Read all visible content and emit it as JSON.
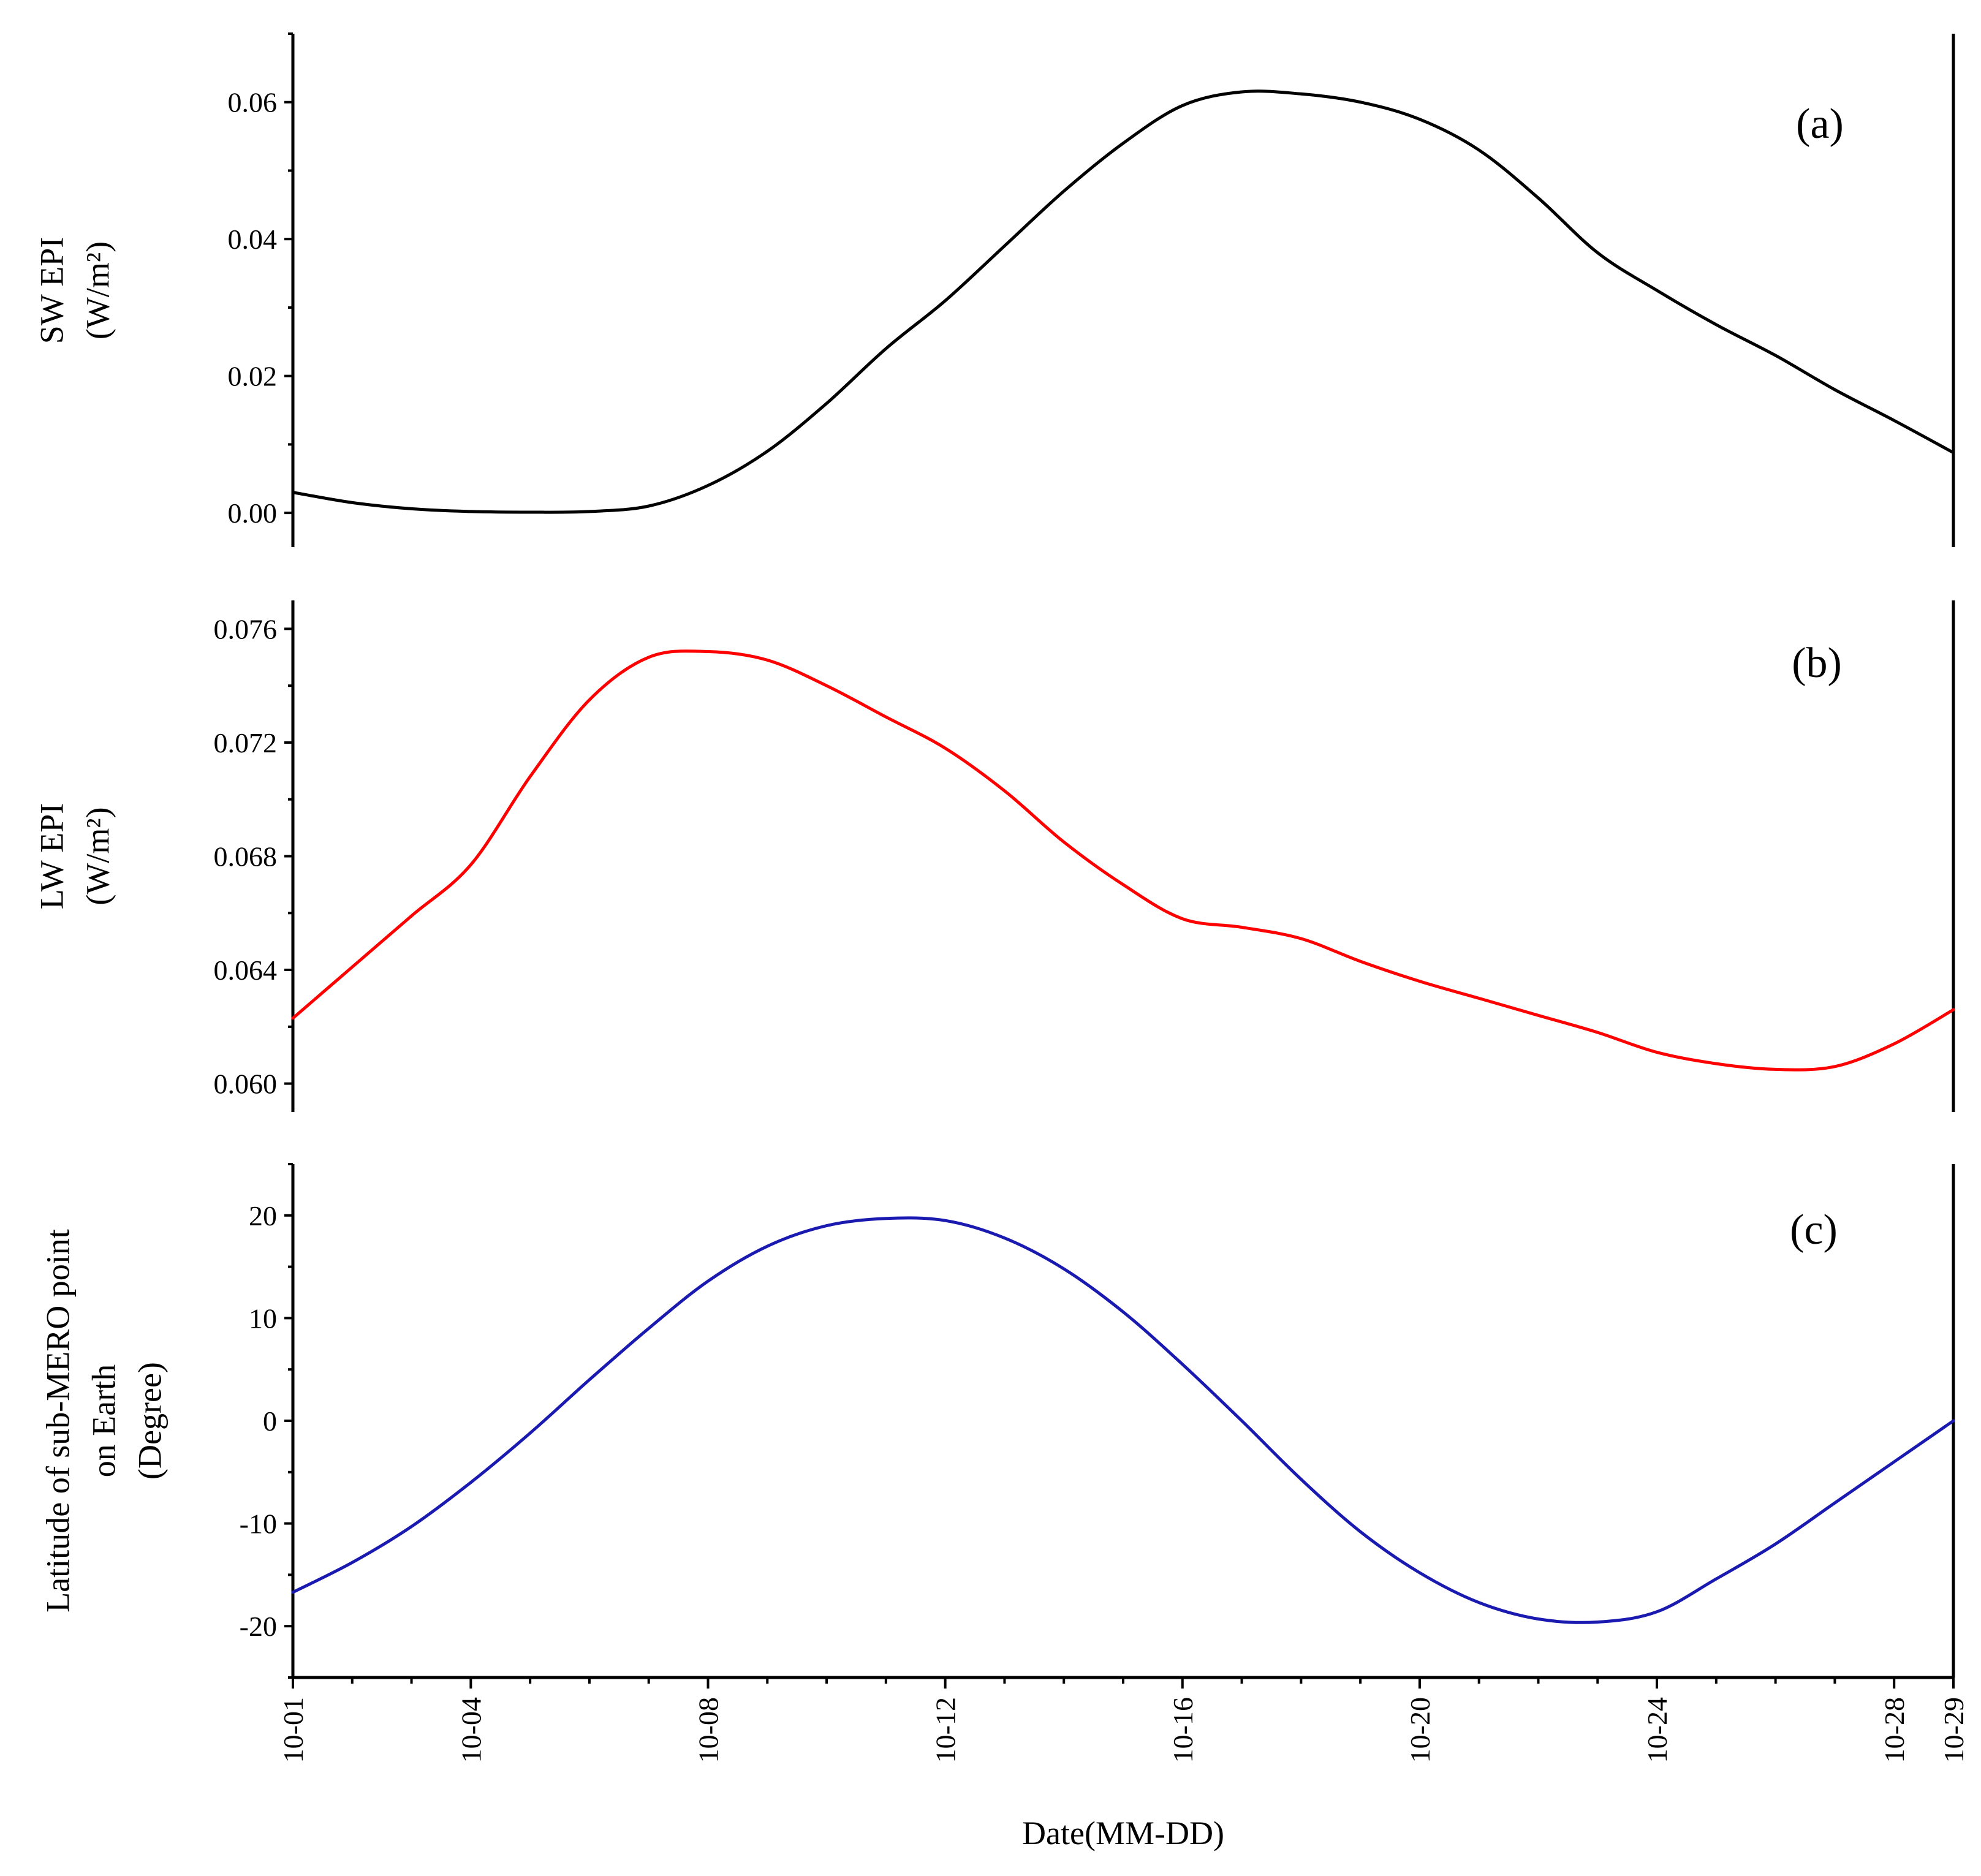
{
  "chart_data": [
    {
      "id": "a",
      "type": "line",
      "panel_label": "(a)",
      "ylabel_lines": [
        "SW EPI",
        "(W/m²)"
      ],
      "ylim": [
        -0.005,
        0.07
      ],
      "yticks": [
        0.0,
        0.02,
        0.04,
        0.06
      ],
      "ytick_labels": [
        "0.00",
        "0.02",
        "0.04",
        "0.06"
      ],
      "color": "#000000",
      "series": [
        {
          "name": "SW EPI",
          "x": [
            1,
            2,
            3,
            4,
            5,
            6,
            7,
            8,
            9,
            10,
            11,
            12,
            13,
            14,
            15,
            16,
            17,
            18,
            19,
            20,
            21,
            22,
            23,
            24,
            25,
            26,
            27,
            28,
            29
          ],
          "values": [
            0.003,
            0.0015,
            0.0006,
            0.0002,
            0.0001,
            0.0002,
            0.001,
            0.004,
            0.009,
            0.016,
            0.024,
            0.031,
            0.039,
            0.047,
            0.054,
            0.0595,
            0.0615,
            0.0612,
            0.06,
            0.0575,
            0.053,
            0.046,
            0.038,
            0.0325,
            0.0275,
            0.023,
            0.018,
            0.0135,
            0.0088
          ]
        }
      ]
    },
    {
      "id": "b",
      "type": "line",
      "panel_label": "(b)",
      "ylabel_lines": [
        "LW EPI",
        "(W/m²)"
      ],
      "ylim": [
        0.059,
        0.077
      ],
      "yticks": [
        0.06,
        0.064,
        0.068,
        0.072,
        0.076
      ],
      "ytick_labels": [
        "0.060",
        "0.064",
        "0.068",
        "0.072",
        "0.076"
      ],
      "color": "#ff0000",
      "series": [
        {
          "name": "LW EPI",
          "x": [
            1,
            2,
            3,
            4,
            5,
            6,
            7,
            8,
            9,
            10,
            11,
            12,
            13,
            14,
            15,
            16,
            17,
            18,
            19,
            20,
            21,
            22,
            23,
            24,
            25,
            26,
            27,
            28,
            29
          ],
          "values": [
            0.0623,
            0.0641,
            0.0659,
            0.0677,
            0.0708,
            0.0735,
            0.075,
            0.0752,
            0.0749,
            0.074,
            0.0729,
            0.0718,
            0.0703,
            0.0685,
            0.067,
            0.0658,
            0.0655,
            0.0651,
            0.0643,
            0.0636,
            0.063,
            0.0624,
            0.0618,
            0.0611,
            0.0607,
            0.0605,
            0.0606,
            0.0614,
            0.0626
          ]
        }
      ]
    },
    {
      "id": "c",
      "type": "line",
      "panel_label": "(c)",
      "ylabel_lines": [
        "Latitude of sub-MERO point",
        "on Earth",
        "(Degree)"
      ],
      "ylim": [
        -25,
        25
      ],
      "yticks": [
        -20,
        -10,
        0,
        10,
        20
      ],
      "ytick_labels": [
        "-20",
        "-10",
        "0",
        "10",
        "20"
      ],
      "color": "#1a1ab0",
      "series": [
        {
          "name": "Latitude of sub-MERO point",
          "x": [
            1,
            2,
            3,
            4,
            5,
            6,
            7,
            8,
            9,
            10,
            11,
            12,
            13,
            14,
            15,
            16,
            17,
            18,
            19,
            20,
            21,
            22,
            23,
            24,
            25,
            26,
            27,
            28,
            29
          ],
          "values": [
            -16.7,
            -13.8,
            -10.3,
            -6.0,
            -1.2,
            4.0,
            9.0,
            13.6,
            17.0,
            19.0,
            19.7,
            19.5,
            17.8,
            14.8,
            10.6,
            5.5,
            0.0,
            -5.7,
            -10.8,
            -14.8,
            -17.7,
            -19.3,
            -19.6,
            -18.6,
            -15.4,
            -12.0,
            -8.0,
            -4.0,
            0.0
          ]
        }
      ]
    }
  ],
  "x_axis": {
    "label": "Date(MM-DD)",
    "xlim": [
      1,
      29
    ],
    "major_ticks": [
      1,
      4,
      8,
      12,
      16,
      20,
      24,
      28,
      29
    ],
    "major_tick_labels": [
      "10-01",
      "10-04",
      "10-08",
      "10-12",
      "10-16",
      "10-20",
      "10-24",
      "10-28",
      "10-29"
    ],
    "minor_step": 1
  }
}
